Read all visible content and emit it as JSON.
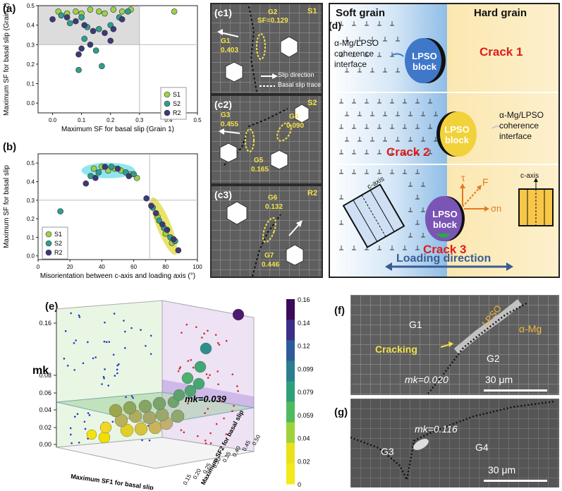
{
  "panels": {
    "a": "(a)",
    "b": "(b)",
    "c1": "(c1)",
    "c2": "(c2)",
    "c3": "(c3)",
    "d": "(d)",
    "e": "(e)",
    "f": "(f)",
    "g": "(g)"
  },
  "chart_data": [
    {
      "type": "scatter",
      "panel": "a",
      "xlabel": "Maximum SF for basal slip (Grain 1)",
      "ylabel": "Maximum SF for basal slip (Grain 2)",
      "xlim": [
        -0.05,
        0.5
      ],
      "ylim": [
        -0.05,
        0.5
      ],
      "xticks": [
        "0.0",
        "0.1",
        "0.2",
        "0.3",
        "0.4",
        "0.5"
      ],
      "yticks": [
        "0.0",
        "0.1",
        "0.2",
        "0.3",
        "0.4",
        "0.5"
      ],
      "legend": "bottom-right",
      "shaded_region": {
        "x": [
          -0.05,
          0.3
        ],
        "y": [
          0.3,
          0.5
        ]
      },
      "series": [
        {
          "name": "S1",
          "color": "#9ad24a",
          "points": [
            [
              0.02,
              0.47
            ],
            [
              0.05,
              0.46
            ],
            [
              0.08,
              0.47
            ],
            [
              0.1,
              0.46
            ],
            [
              0.13,
              0.48
            ],
            [
              0.16,
              0.47
            ],
            [
              0.18,
              0.46
            ],
            [
              0.21,
              0.48
            ],
            [
              0.24,
              0.47
            ],
            [
              0.27,
              0.48
            ],
            [
              0.42,
              0.47
            ]
          ]
        },
        {
          "name": "S2",
          "color": "#2e9e8e",
          "points": [
            [
              0.03,
              0.45
            ],
            [
              0.06,
              0.41
            ],
            [
              0.1,
              0.44
            ],
            [
              0.12,
              0.39
            ],
            [
              0.16,
              0.38
            ],
            [
              0.2,
              0.4
            ],
            [
              0.23,
              0.44
            ],
            [
              0.09,
              0.17
            ],
            [
              0.17,
              0.19
            ],
            [
              0.15,
              0.27
            ],
            [
              0.11,
              0.33
            ],
            [
              0.26,
              0.47
            ]
          ]
        },
        {
          "name": "R2",
          "color": "#3c3a7a",
          "points": [
            [
              0.0,
              0.43
            ],
            [
              0.05,
              0.44
            ],
            [
              0.08,
              0.42
            ],
            [
              0.11,
              0.4
            ],
            [
              0.14,
              0.37
            ],
            [
              0.18,
              0.36
            ],
            [
              0.21,
              0.38
            ],
            [
              0.09,
              0.25
            ],
            [
              0.1,
              0.28
            ],
            [
              0.13,
              0.3
            ],
            [
              0.2,
              0.32
            ],
            [
              0.24,
              0.43
            ]
          ]
        }
      ]
    },
    {
      "type": "scatter",
      "panel": "b",
      "xlabel": "Misorientation between c-axis and loading axis (°)",
      "ylabel": "Maximum SF for basal slip",
      "xlim": [
        0,
        100
      ],
      "ylim": [
        -0.02,
        0.55
      ],
      "xticks": [
        "0",
        "20",
        "40",
        "60",
        "80",
        "100"
      ],
      "yticks": [
        "0.0",
        "0.1",
        "0.2",
        "0.3",
        "0.4",
        "0.5"
      ],
      "legend": "bottom-left",
      "series": [
        {
          "name": "S1",
          "color": "#9ad24a",
          "points": [
            [
              35,
              0.47
            ],
            [
              40,
              0.48
            ],
            [
              44,
              0.46
            ],
            [
              48,
              0.47
            ],
            [
              52,
              0.46
            ],
            [
              58,
              0.44
            ],
            [
              62,
              0.42
            ],
            [
              75,
              0.21
            ],
            [
              80,
              0.12
            ],
            [
              84,
              0.07
            ]
          ]
        },
        {
          "name": "S2",
          "color": "#2e9e8e",
          "points": [
            [
              14,
              0.24
            ],
            [
              33,
              0.43
            ],
            [
              38,
              0.45
            ],
            [
              46,
              0.48
            ],
            [
              55,
              0.45
            ],
            [
              60,
              0.44
            ],
            [
              72,
              0.26
            ],
            [
              76,
              0.19
            ],
            [
              79,
              0.15
            ],
            [
              83,
              0.1
            ],
            [
              86,
              0.08
            ]
          ]
        },
        {
          "name": "R2",
          "color": "#3c3a7a",
          "points": [
            [
              30,
              0.39
            ],
            [
              36,
              0.42
            ],
            [
              42,
              0.48
            ],
            [
              50,
              0.47
            ],
            [
              57,
              0.43
            ],
            [
              68,
              0.31
            ],
            [
              71,
              0.27
            ],
            [
              74,
              0.23
            ],
            [
              78,
              0.17
            ],
            [
              81,
              0.14
            ],
            [
              85,
              0.09
            ],
            [
              88,
              0.03
            ]
          ]
        }
      ]
    },
    {
      "type": "scatter",
      "panel": "e",
      "xlabel": "Maximum SF1 for basal slip",
      "ylabel": "Maximum SF2 for basal slip",
      "zlabel": "mk",
      "zticks": [
        "0.00",
        "0.02",
        "0.04",
        "0.06",
        "0.08",
        "0.16"
      ],
      "colorbar_ticks": [
        "0.16",
        "0.14",
        "0.12",
        "0.099",
        "0.079",
        "0.059",
        "0.04",
        "0.02",
        "0"
      ],
      "y_ticks": [
        "0.50",
        "0.45",
        "0.40",
        "0.35",
        "0.30",
        "0.25",
        "0.20",
        "0.15"
      ],
      "annotation": "mk=0.039"
    }
  ],
  "panel_c": {
    "c1": {
      "site": "S1",
      "G1": "G1",
      "G1v": "0.403",
      "G2": "G2",
      "G2v": "SF=0.129",
      "legend_slip": "Slip direction",
      "legend_trace": "Basal slip trace"
    },
    "c2": {
      "site": "S2",
      "G3": "G3",
      "G3v": "0.455",
      "G4": "G4",
      "G4v": "0.090",
      "G5": "G5",
      "G5v": "0.165"
    },
    "c3": {
      "site": "R2",
      "G6": "G6",
      "G6v": "0.132",
      "G7": "G7",
      "G7v": "0.446"
    }
  },
  "panel_d": {
    "soft": "Soft grain",
    "hard": "Hard grain",
    "iface1": "α-Mg/LPSO coherence interface",
    "iface2": "α-Mg/LPSO coherence interface",
    "block": "LPSO block",
    "crack1": "Crack 1",
    "crack2": "Crack 2",
    "crack3": "Crack 3",
    "tau": "τ",
    "F": "F",
    "sigma": "σn",
    "caxis": "c-axis",
    "caxis2": "c-axis",
    "loading": "Loading direction"
  },
  "panel_f": {
    "G1": "G1",
    "G2": "G2",
    "lpso": "LPSO",
    "mg": "α-Mg",
    "cracking": "Cracking",
    "mk": "mk=0.020",
    "scale": "30 μm"
  },
  "panel_g": {
    "G3": "G3",
    "G4": "G4",
    "mk": "mk=0.116",
    "scale": "30 μm"
  }
}
